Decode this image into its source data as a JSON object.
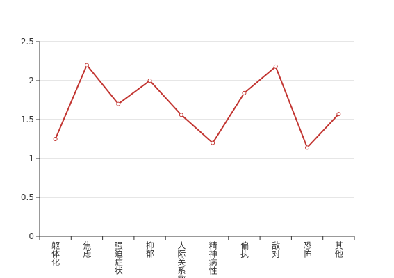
{
  "chart_data": {
    "type": "line",
    "categories": [
      "躯体化",
      "焦虑",
      "强迫症状",
      "抑郁",
      "人际关系敏感",
      "精神病性",
      "偏执",
      "敌对",
      "恐怖",
      "其他"
    ],
    "series": [
      {
        "color": "#c23531",
        "values": [
          1.25,
          2.2,
          1.7,
          2.0,
          1.56,
          1.2,
          1.84,
          2.18,
          1.14,
          1.57
        ]
      }
    ],
    "ylim": [
      0,
      2.5
    ],
    "yticks": [
      0,
      0.5,
      1,
      1.5,
      2,
      2.5
    ],
    "grid": true
  }
}
